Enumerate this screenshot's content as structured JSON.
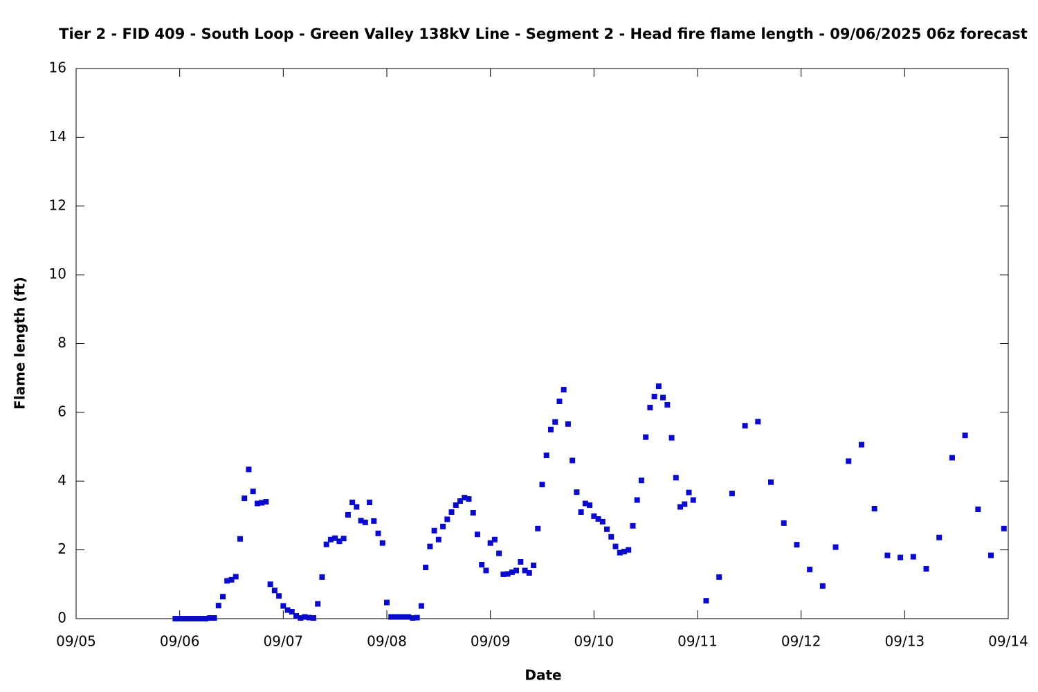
{
  "chart_data": {
    "type": "scatter",
    "title": "Tier 2 - FID 409 - South Loop - Green Valley 138kV Line - Segment 2 - Head fire flame length - 09/06/2025 06z forecast",
    "x_label": "Date",
    "y_label": "Flame length (ft)",
    "xlim": [
      0,
      216
    ],
    "xticks": [
      {
        "value": 0,
        "label": "09/05"
      },
      {
        "value": 24,
        "label": "09/06"
      },
      {
        "value": 48,
        "label": "09/07"
      },
      {
        "value": 72,
        "label": "09/08"
      },
      {
        "value": 96,
        "label": "09/09"
      },
      {
        "value": 120,
        "label": "09/10"
      },
      {
        "value": 144,
        "label": "09/11"
      },
      {
        "value": 168,
        "label": "09/12"
      },
      {
        "value": 192,
        "label": "09/13"
      },
      {
        "value": 216,
        "label": "09/14"
      }
    ],
    "ylim": [
      0,
      16
    ],
    "yticks": [
      0,
      2,
      4,
      6,
      8,
      10,
      12,
      14,
      16
    ],
    "x": [
      23,
      24,
      25,
      26,
      27,
      28,
      29,
      30,
      31,
      32,
      33,
      34,
      35,
      36,
      37,
      38,
      39,
      40,
      41,
      42,
      43,
      44,
      45,
      46,
      47,
      48,
      49,
      50,
      51,
      52,
      53,
      54,
      55,
      56,
      57,
      58,
      59,
      60,
      61,
      62,
      63,
      64,
      65,
      66,
      67,
      68,
      69,
      70,
      71,
      72,
      73,
      74,
      75,
      76,
      77,
      78,
      79,
      80,
      81,
      82,
      83,
      84,
      85,
      86,
      87,
      88,
      89,
      90,
      91,
      92,
      93,
      94,
      95,
      96,
      97,
      98,
      99,
      100,
      101,
      102,
      103,
      104,
      105,
      106,
      107,
      108,
      109,
      110,
      111,
      112,
      113,
      114,
      115,
      116,
      117,
      118,
      119,
      120,
      121,
      122,
      123,
      124,
      125,
      126,
      127,
      128,
      129,
      130,
      131,
      132,
      133,
      134,
      135,
      136,
      137,
      138,
      139,
      140,
      141,
      142,
      143,
      146,
      149,
      152,
      155,
      158,
      161,
      164,
      167,
      170,
      173,
      176,
      179,
      182,
      185,
      188,
      191,
      194,
      197,
      200,
      203,
      206,
      209,
      212,
      215
    ],
    "series": [
      {
        "color": "#0a0acc",
        "values": [
          0,
          0,
          0,
          0,
          0,
          0,
          0,
          0,
          0.02,
          0.02,
          0.38,
          0.64,
          1.1,
          1.13,
          1.22,
          2.32,
          3.5,
          4.34,
          3.7,
          3.35,
          3.37,
          3.4,
          1.0,
          0.82,
          0.66,
          0.37,
          0.25,
          0.2,
          0.08,
          0.02,
          0.05,
          0.03,
          0.02,
          0.43,
          1.21,
          2.16,
          2.3,
          2.34,
          2.25,
          2.33,
          3.02,
          3.38,
          3.25,
          2.85,
          2.8,
          3.38,
          2.84,
          2.48,
          2.2,
          0.47,
          0.05,
          0.05,
          0.05,
          0.05,
          0.05,
          0.02,
          0.03,
          0.37,
          1.49,
          2.1,
          2.56,
          2.3,
          2.68,
          2.89,
          3.1,
          3.3,
          3.42,
          3.52,
          3.48,
          3.08,
          2.45,
          1.57,
          1.4,
          2.2,
          2.3,
          1.9,
          1.29,
          1.3,
          1.35,
          1.4,
          1.65,
          1.4,
          1.33,
          1.55,
          2.62,
          3.9,
          4.75,
          5.5,
          5.72,
          6.32,
          6.66,
          5.66,
          4.6,
          3.68,
          3.1,
          3.35,
          3.3,
          2.98,
          2.9,
          2.82,
          2.6,
          2.38,
          2.1,
          1.92,
          1.95,
          2.0,
          2.7,
          3.45,
          4.02,
          5.28,
          6.14,
          6.46,
          6.76,
          6.43,
          6.22,
          5.26,
          4.1,
          3.25,
          3.33,
          3.67,
          3.45,
          0.52,
          1.21,
          3.64,
          5.61,
          5.73,
          3.97,
          2.78,
          2.15,
          1.43,
          0.95,
          2.08,
          4.58,
          5.06,
          3.2,
          1.84,
          1.78,
          1.8,
          1.45,
          2.36,
          4.68,
          5.33,
          3.18,
          1.84,
          2.62
        ]
      }
    ]
  }
}
